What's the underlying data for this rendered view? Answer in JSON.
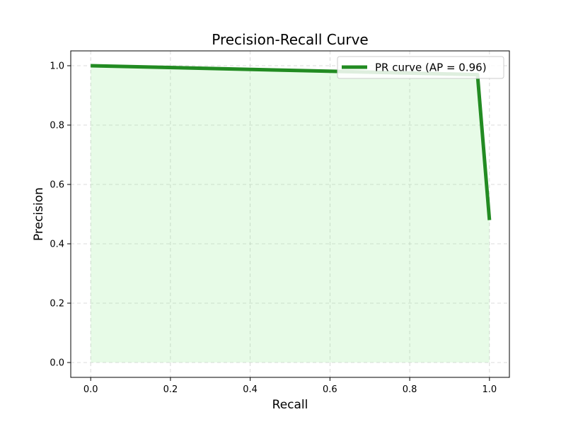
{
  "chart_data": {
    "type": "line",
    "title": "Precision-Recall Curve",
    "xlabel": "Recall",
    "ylabel": "Precision",
    "xlim": [
      -0.05,
      1.05
    ],
    "ylim": [
      -0.05,
      1.05
    ],
    "xticks": [
      0.0,
      0.2,
      0.4,
      0.6,
      0.8,
      1.0
    ],
    "xtick_labels": [
      "0.0",
      "0.2",
      "0.4",
      "0.6",
      "0.8",
      "1.0"
    ],
    "yticks": [
      0.0,
      0.2,
      0.4,
      0.6,
      0.8,
      1.0
    ],
    "ytick_labels": [
      "0.0",
      "0.2",
      "0.4",
      "0.6",
      "0.8",
      "1.0"
    ],
    "grid": true,
    "legend_position": "upper-right",
    "series": [
      {
        "name": "PR curve (AP = 0.96)",
        "color": "#228B22",
        "fill_color": "#90EE90",
        "fill_under": true,
        "x": [
          0.0,
          0.97,
          1.0
        ],
        "y": [
          1.0,
          0.97,
          0.48
        ]
      }
    ]
  }
}
